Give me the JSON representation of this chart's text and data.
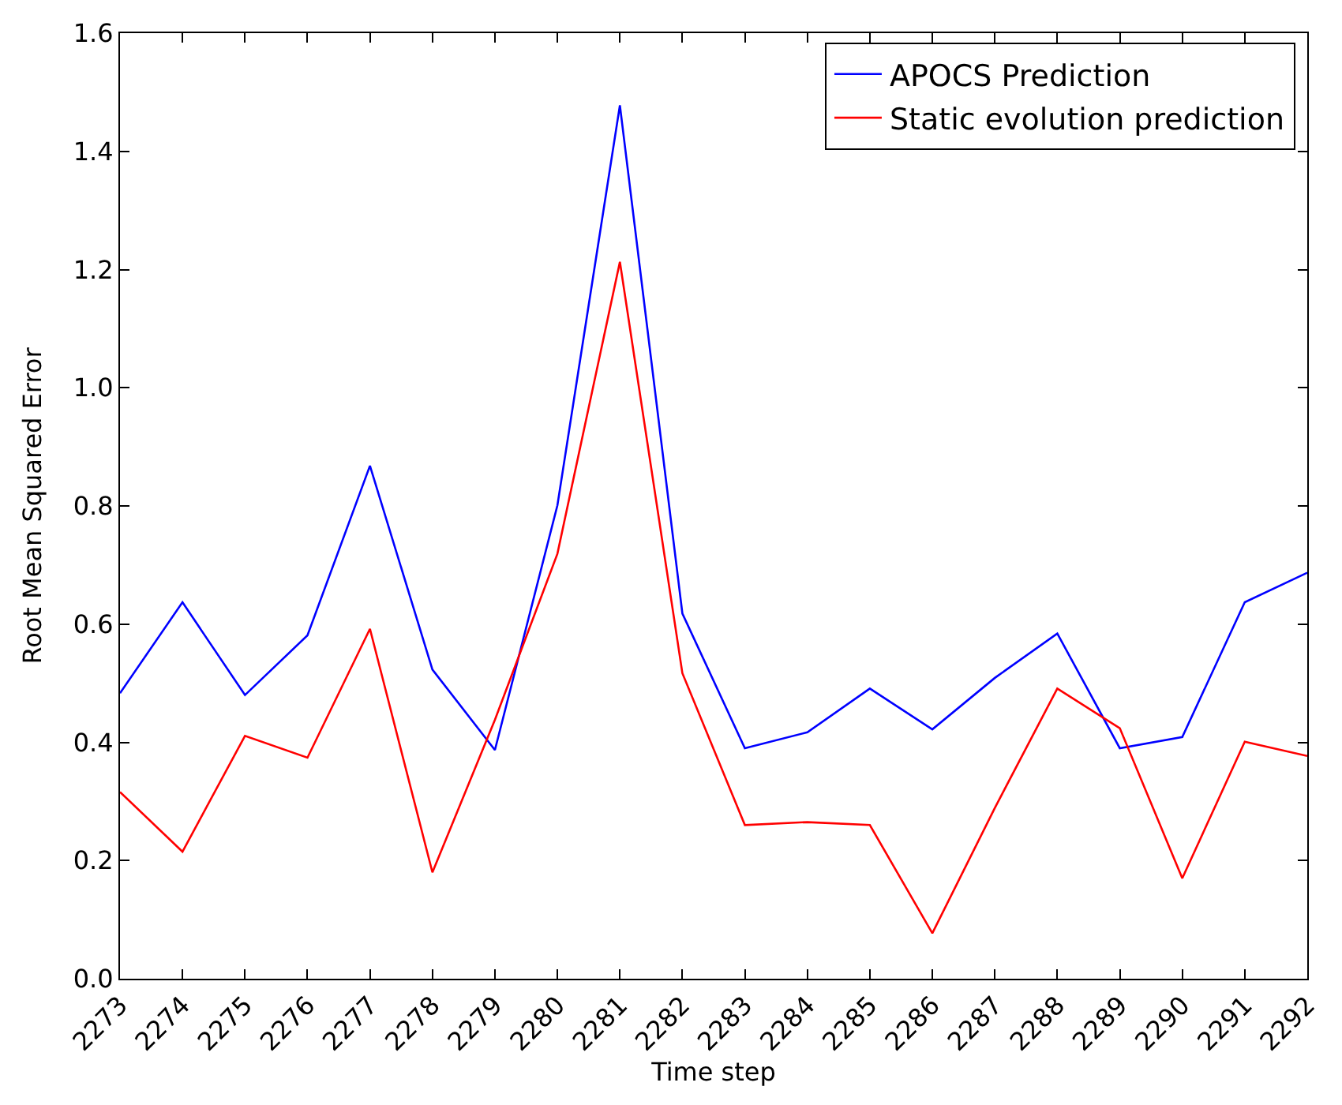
{
  "chart_data": {
    "type": "line",
    "xlabel": "Time step",
    "ylabel": "Root Mean Squared Error",
    "x": [
      2273,
      2274,
      2275,
      2276,
      2277,
      2278,
      2279,
      2280,
      2281,
      2282,
      2283,
      2284,
      2285,
      2286,
      2287,
      2288,
      2289,
      2290,
      2291,
      2292
    ],
    "series": [
      {
        "name": "APOCS Prediction",
        "color": "#0000ff",
        "values": [
          0.483,
          0.637,
          0.48,
          0.581,
          0.868,
          0.523,
          0.387,
          0.801,
          1.478,
          0.618,
          0.39,
          0.417,
          0.491,
          0.422,
          0.509,
          0.584,
          0.39,
          0.409,
          0.637,
          0.687
        ]
      },
      {
        "name": "Static evolution prediction",
        "color": "#ff0000",
        "values": [
          0.316,
          0.215,
          0.411,
          0.374,
          0.592,
          0.18,
          0.438,
          0.719,
          1.213,
          0.517,
          0.26,
          0.265,
          0.26,
          0.077,
          0.289,
          0.491,
          0.424,
          0.17,
          0.401,
          0.377
        ]
      }
    ],
    "xlim": [
      2273,
      2292
    ],
    "xticks": [
      2273,
      2274,
      2275,
      2276,
      2277,
      2278,
      2279,
      2280,
      2281,
      2282,
      2283,
      2284,
      2285,
      2286,
      2287,
      2288,
      2289,
      2290,
      2291,
      2292
    ],
    "ylim": [
      0,
      1.6
    ],
    "yticks": [
      {
        "value": 0,
        "label": "0.0"
      },
      {
        "value": 0.2,
        "label": "0.2"
      },
      {
        "value": 0.4,
        "label": "0.4"
      },
      {
        "value": 0.6,
        "label": "0.6"
      },
      {
        "value": 0.8,
        "label": "0.8"
      },
      {
        "value": 1.0,
        "label": "1.0"
      },
      {
        "value": 1.2,
        "label": "1.2"
      },
      {
        "value": 1.4,
        "label": "1.4"
      },
      {
        "value": 1.6,
        "label": "1.6"
      }
    ],
    "legend": "top right",
    "marker": "none",
    "line_style": "solid"
  }
}
